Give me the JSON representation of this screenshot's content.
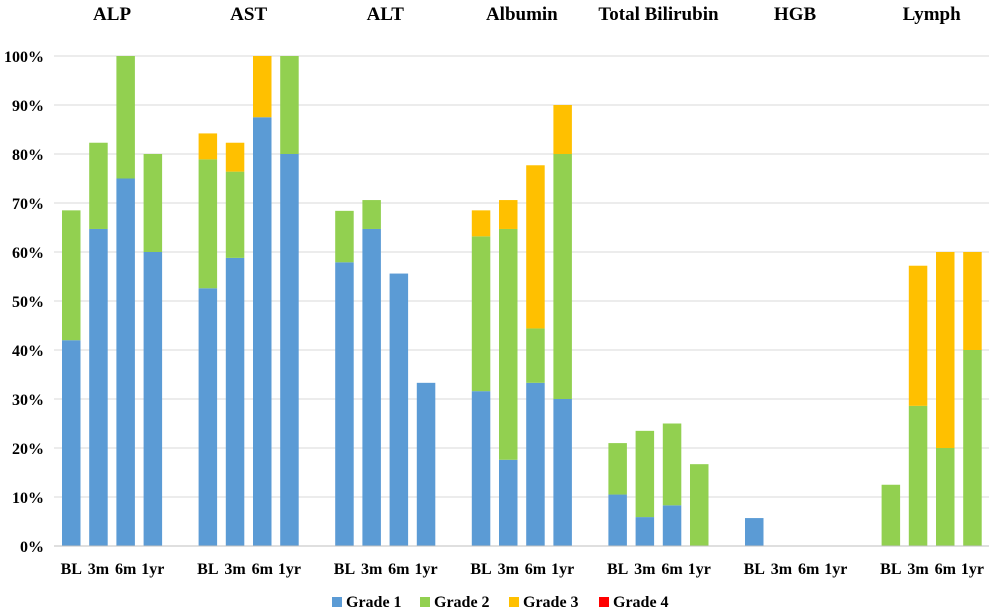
{
  "chart_data": {
    "type": "stacked-bar",
    "title": "",
    "xlabel": "",
    "ylabel": "",
    "ylim": [
      0,
      100
    ],
    "y_ticks": [
      "0%",
      "10%",
      "20%",
      "30%",
      "40%",
      "50%",
      "60%",
      "70%",
      "80%",
      "90%",
      "100%"
    ],
    "timepoints": [
      "BL",
      "3m",
      "6m",
      "1yr"
    ],
    "grid": true,
    "legend_position": "bottom",
    "series": [
      {
        "name": "Grade 1",
        "color": "#5B9BD5"
      },
      {
        "name": "Grade 2",
        "color": "#92D050"
      },
      {
        "name": "Grade 3",
        "color": "#FFC000"
      },
      {
        "name": "Grade 4",
        "color": "#FF0000"
      }
    ],
    "groups": [
      {
        "name": "ALP",
        "values": [
          [
            42,
            26.5,
            0,
            0
          ],
          [
            64.7,
            17.6,
            0,
            0
          ],
          [
            75,
            25,
            0,
            0
          ],
          [
            60,
            20,
            0,
            0
          ]
        ]
      },
      {
        "name": "AST",
        "values": [
          [
            52.6,
            26.3,
            5.3,
            0
          ],
          [
            58.8,
            17.6,
            5.9,
            0
          ],
          [
            87.5,
            0,
            12.5,
            0
          ],
          [
            80,
            20,
            0,
            0
          ]
        ]
      },
      {
        "name": "ALT",
        "values": [
          [
            57.9,
            10.5,
            0,
            0
          ],
          [
            64.7,
            5.9,
            0,
            0
          ],
          [
            55.6,
            0,
            0,
            0
          ],
          [
            33.3,
            0,
            0,
            0
          ]
        ]
      },
      {
        "name": "Albumin",
        "values": [
          [
            31.6,
            31.6,
            5.3,
            0
          ],
          [
            17.6,
            47.1,
            5.9,
            0
          ],
          [
            33.3,
            11.1,
            33.3,
            0
          ],
          [
            30,
            50,
            10,
            0
          ]
        ]
      },
      {
        "name": "Total Bilirubin",
        "values": [
          [
            10.5,
            10.5,
            0,
            0
          ],
          [
            5.9,
            17.6,
            0,
            0
          ],
          [
            8.3,
            16.7,
            0,
            0
          ],
          [
            0,
            16.7,
            0,
            0
          ]
        ]
      },
      {
        "name": "HGB",
        "values": [
          [
            5.7,
            0,
            0,
            0
          ],
          [
            0,
            0,
            0,
            0
          ],
          [
            0,
            0,
            0,
            0
          ],
          [
            0,
            0,
            0,
            0
          ]
        ]
      },
      {
        "name": "Lymph",
        "values": [
          [
            0,
            12.5,
            0,
            0
          ],
          [
            0,
            28.6,
            28.6,
            0
          ],
          [
            0,
            20,
            40,
            0
          ],
          [
            0,
            40,
            20,
            0
          ]
        ]
      }
    ]
  }
}
